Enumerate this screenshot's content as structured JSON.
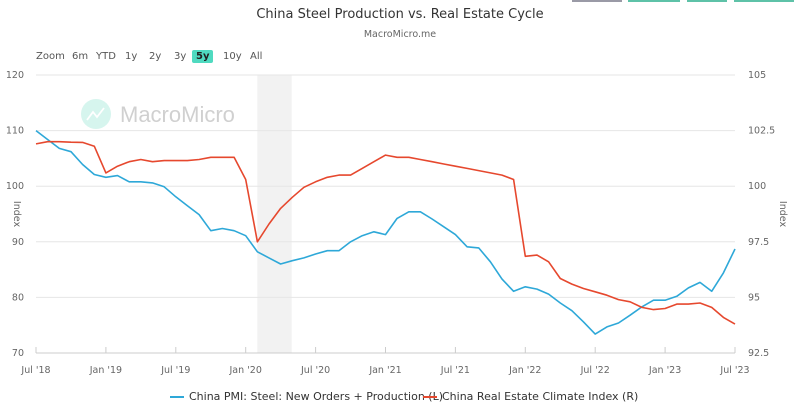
{
  "header": {
    "title": "China Steel Production vs. Real Estate Cycle",
    "subtitle": "MacroMicro.me"
  },
  "watermark": {
    "text": "MacroMicro"
  },
  "range_selector": {
    "label": "Zoom",
    "options": [
      "6m",
      "YTD",
      "1y",
      "2y",
      "3y",
      "5y",
      "10y",
      "All"
    ],
    "selected": "5y"
  },
  "colors": {
    "steel": "#2ea8d8",
    "real_estate": "#e6482e",
    "selected_range": "#4fdac0",
    "shade": "#f2f2f2",
    "grid": "#e6e6e6"
  },
  "chart_data": {
    "type": "line",
    "title": "China Steel Production vs. Real Estate Cycle",
    "subtitle": "MacroMicro.me",
    "xlabel": "",
    "ylabel_left": "Index",
    "ylabel_right": "Index",
    "ylim_left": [
      70,
      120
    ],
    "ylim_right": [
      92.5,
      105
    ],
    "yticks_left": [
      "120",
      "110",
      "100",
      "90",
      "80",
      "70"
    ],
    "yticks_right": [
      "105",
      "102.5",
      "100",
      "97.5",
      "95",
      "92.5"
    ],
    "xticks": [
      "Jul '18",
      "Jan '19",
      "Jul '19",
      "Jan '20",
      "Jul '20",
      "Jan '21",
      "Jul '21",
      "Jan '22",
      "Jul '22",
      "Jan '23",
      "Jul '23"
    ],
    "grid": true,
    "legend_position": "bottom",
    "shaded_region": {
      "from": "2020-02",
      "to": "2020-05"
    },
    "x": [
      "2018-07",
      "2018-08",
      "2018-09",
      "2018-10",
      "2018-11",
      "2018-12",
      "2019-01",
      "2019-02",
      "2019-03",
      "2019-04",
      "2019-05",
      "2019-06",
      "2019-07",
      "2019-08",
      "2019-09",
      "2019-10",
      "2019-11",
      "2019-12",
      "2020-01",
      "2020-02",
      "2020-03",
      "2020-04",
      "2020-05",
      "2020-06",
      "2020-07",
      "2020-08",
      "2020-09",
      "2020-10",
      "2020-11",
      "2020-12",
      "2021-01",
      "2021-02",
      "2021-03",
      "2021-04",
      "2021-05",
      "2021-06",
      "2021-07",
      "2021-08",
      "2021-09",
      "2021-10",
      "2021-11",
      "2021-12",
      "2022-01",
      "2022-02",
      "2022-03",
      "2022-04",
      "2022-05",
      "2022-06",
      "2022-07",
      "2022-08",
      "2022-09",
      "2022-10",
      "2022-11",
      "2022-12",
      "2023-01",
      "2023-02",
      "2023-03",
      "2023-04",
      "2023-05",
      "2023-06",
      "2023-07"
    ],
    "series": [
      {
        "name": "China PMI: Steel: New Orders + Production (L)",
        "axis": "left",
        "values": [
          110.0,
          108.4,
          106.8,
          106.2,
          103.9,
          102.1,
          101.6,
          101.9,
          100.8,
          100.8,
          100.6,
          99.9,
          98.1,
          96.5,
          94.9,
          92.0,
          92.4,
          92.0,
          91.1,
          88.2,
          87.1,
          86.0,
          86.6,
          87.1,
          87.8,
          88.4,
          88.4,
          90.0,
          91.1,
          91.8,
          91.3,
          94.2,
          95.4,
          95.4,
          94.1,
          92.7,
          91.3,
          89.1,
          88.9,
          86.4,
          83.3,
          81.1,
          81.9,
          81.5,
          80.6,
          79.0,
          77.6,
          75.6,
          73.4,
          74.7,
          75.4,
          76.8,
          78.3,
          79.5,
          79.5,
          80.2,
          81.7,
          82.7,
          81.1,
          84.4,
          88.7
        ]
      },
      {
        "name": "China Real Estate Climate Index (R)",
        "axis": "right",
        "values": [
          101.9,
          102.0,
          102.0,
          101.98,
          101.97,
          101.8,
          100.6,
          100.9,
          101.1,
          101.2,
          101.1,
          101.15,
          101.15,
          101.15,
          101.2,
          101.3,
          101.3,
          101.3,
          100.3,
          97.5,
          98.3,
          99.0,
          99.5,
          99.95,
          100.2,
          100.4,
          100.5,
          100.5,
          100.8,
          101.1,
          101.4,
          101.3,
          101.3,
          101.2,
          101.1,
          101.0,
          100.9,
          100.8,
          100.7,
          100.6,
          100.5,
          100.3,
          96.85,
          96.9,
          96.6,
          95.85,
          95.6,
          95.4,
          95.25,
          95.1,
          94.9,
          94.8,
          94.55,
          94.45,
          94.5,
          94.7,
          94.7,
          94.75,
          94.55,
          94.1,
          93.8
        ]
      }
    ]
  }
}
